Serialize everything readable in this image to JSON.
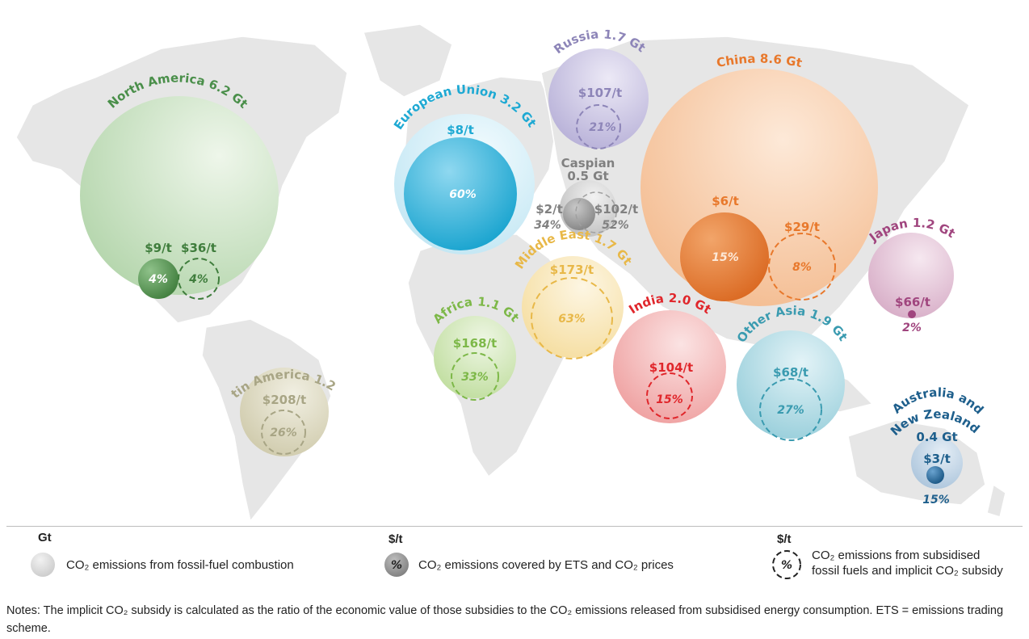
{
  "regions": {
    "north_america": {
      "label": "North America 6.2 Gt",
      "price_ets": "$9/t",
      "pct_ets": "4%",
      "price_sub": "$36/t",
      "pct_sub": "4%",
      "color": "#4a8f4a"
    },
    "latin_america": {
      "label": "Latin America 1.2 Gt",
      "price_sub": "$208/t",
      "pct_sub": "26%",
      "color": "#a8a585"
    },
    "european_union": {
      "label": "European Union 3.2 Gt",
      "price_ets": "$8/t",
      "pct_ets": "60%",
      "color": "#1ea9d3"
    },
    "russia": {
      "label": "Russia 1.7 Gt",
      "price_sub": "$107/t",
      "pct_sub": "21%",
      "color": "#8d85b8"
    },
    "caspian": {
      "label_line1": "Caspian",
      "label_line2": "0.5 Gt",
      "price_ets": "$2/t",
      "pct_ets": "34%",
      "price_sub": "$102/t",
      "pct_sub": "52%",
      "color": "#808080"
    },
    "china": {
      "label": "China 8.6 Gt",
      "price_ets": "$6/t",
      "pct_ets": "15%",
      "price_sub": "$29/t",
      "pct_sub": "8%",
      "color": "#e8782b"
    },
    "japan": {
      "label": "Japan 1.2 Gt",
      "price_ets": "$66/t",
      "pct_ets": "2%",
      "color": "#a0457e"
    },
    "middle_east": {
      "label": "Middle East 1.7 Gt",
      "price_sub": "$173/t",
      "pct_sub": "63%",
      "color": "#e8b848"
    },
    "africa": {
      "label": "Africa 1.1 Gt",
      "price_sub": "$168/t",
      "pct_sub": "33%",
      "color": "#7db848"
    },
    "india": {
      "label": "India 2.0 Gt",
      "price_sub": "$104/t",
      "pct_sub": "15%",
      "color": "#e0262b"
    },
    "other_asia": {
      "label": "Other Asia 1.9 Gt",
      "price_sub": "$68/t",
      "pct_sub": "27%",
      "color": "#3a9bb0"
    },
    "australia_nz": {
      "label_line1": "Australia and",
      "label_line2": "New Zealand",
      "label_line3": "0.4 Gt",
      "price_ets": "$3/t",
      "pct_ets": "15%",
      "color": "#1e5f8c"
    }
  },
  "legend": {
    "gt_header": "Gt",
    "gt_text": "CO₂ emissions from fossil-fuel combustion",
    "ets_header": "$/t",
    "ets_symbol": "%",
    "ets_text": "CO₂ emissions covered by ETS and CO₂ prices",
    "sub_header": "$/t",
    "sub_symbol": "%",
    "sub_text_line1": "CO₂ emissions from subsidised",
    "sub_text_line2": "fossil fuels and implicit CO₂ subsidy"
  },
  "notes": "Notes: The implicit CO₂ subsidy is calculated as the ratio of the economic value of those subsidies to the CO₂ emissions released from subsidised energy consumption. ETS = emissions trading scheme."
}
